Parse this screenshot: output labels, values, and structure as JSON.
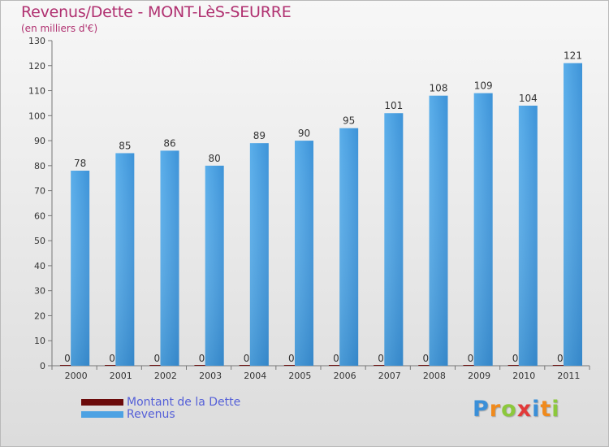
{
  "title": "Revenus/Dette - MONT-LèS-SEURRE",
  "subtitle": "(en milliers d'€)",
  "chart_data": {
    "type": "bar",
    "categories": [
      "2000",
      "2001",
      "2002",
      "2003",
      "2004",
      "2005",
      "2006",
      "2007",
      "2008",
      "2009",
      "2010",
      "2011"
    ],
    "series": [
      {
        "name": "Montant de la Dette",
        "color": "#6b0a0a",
        "values": [
          0,
          0,
          0,
          0,
          0,
          0,
          0,
          0,
          0,
          0,
          0,
          0
        ]
      },
      {
        "name": "Revenus",
        "color": "#4da2e3",
        "values": [
          78,
          85,
          86,
          80,
          89,
          90,
          95,
          101,
          108,
          109,
          104,
          121
        ]
      }
    ],
    "ylim": [
      0,
      130
    ],
    "yticks": [
      0,
      10,
      20,
      30,
      40,
      50,
      60,
      70,
      80,
      90,
      100,
      110,
      120,
      130
    ],
    "grid": false,
    "legend_position": "bottom-left"
  },
  "legend": {
    "items": [
      {
        "label": "Montant de la Dette",
        "color": "#6b0a0a"
      },
      {
        "label": "Revenus",
        "color": "#4da2e3"
      }
    ]
  },
  "logo": {
    "letters": [
      "P",
      "r",
      "o",
      "x",
      "i",
      "t",
      "i"
    ],
    "colors": [
      "#3a8fd8",
      "#f08a1c",
      "#8cc83c",
      "#e23a3a",
      "#3a8fd8",
      "#f08a1c",
      "#8cc83c"
    ]
  }
}
